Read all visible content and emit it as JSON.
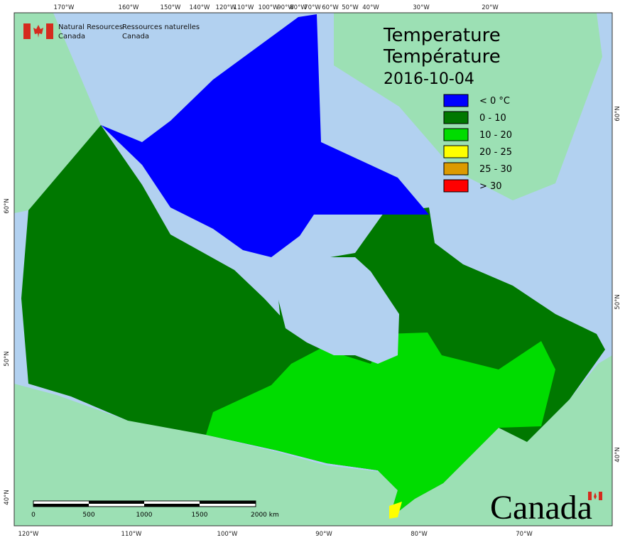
{
  "header": {
    "department_en": [
      "Natural Resources",
      "Canada"
    ],
    "department_fr": [
      "Ressources naturelles",
      "Canada"
    ]
  },
  "title": {
    "line_en": "Temperature",
    "line_fr": "Température",
    "date": "2016-10-04"
  },
  "legend": {
    "items": [
      {
        "label": "< 0 °C",
        "color": "#0000ff"
      },
      {
        "label": "0 - 10",
        "color": "#007800"
      },
      {
        "label": "10 - 20",
        "color": "#00dc00"
      },
      {
        "label": "20 - 25",
        "color": "#ffff00"
      },
      {
        "label": "25 - 30",
        "color": "#dc9a00"
      },
      {
        "label": "> 30",
        "color": "#ff0000"
      }
    ]
  },
  "graticule": {
    "top": [
      "170°W",
      "160°W",
      "150°W",
      "140°W",
      "120°W",
      "110°W",
      "100°W",
      "90°W",
      "80°W",
      "70°W",
      "60°W",
      "50°W",
      "40°W",
      "30°W",
      "20°W"
    ],
    "bottom": [
      "120°W",
      "110°W",
      "100°W",
      "90°W",
      "80°W",
      "70°W"
    ],
    "left": [
      "60°N",
      "50°N",
      "40°N"
    ],
    "right": [
      "60°N",
      "50°N",
      "40°N"
    ]
  },
  "scale_bar": {
    "labels": [
      "0",
      "500",
      "1000",
      "1500",
      "2000  km"
    ]
  },
  "wordmark": "Canada"
}
